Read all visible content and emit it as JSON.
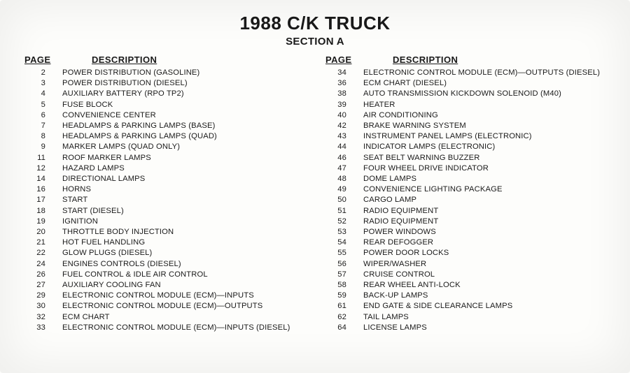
{
  "header": {
    "title": "1988 C/K TRUCK",
    "subtitle": "SECTION A"
  },
  "columnHeaders": {
    "page": "PAGE",
    "description": "DESCRIPTION"
  },
  "leftColumn": [
    {
      "page": "2",
      "desc": "POWER DISTRIBUTION (GASOLINE)"
    },
    {
      "page": "3",
      "desc": "POWER DISTRIBUTION (DIESEL)"
    },
    {
      "page": "4",
      "desc": "AUXILIARY BATTERY (RPO TP2)"
    },
    {
      "page": "5",
      "desc": "FUSE BLOCK"
    },
    {
      "page": "6",
      "desc": "CONVENIENCE CENTER"
    },
    {
      "page": "7",
      "desc": "HEADLAMPS & PARKING LAMPS (BASE)"
    },
    {
      "page": "8",
      "desc": "HEADLAMPS & PARKING LAMPS (QUAD)"
    },
    {
      "page": "9",
      "desc": "MARKER LAMPS (QUAD ONLY)"
    },
    {
      "page": "11",
      "desc": "ROOF MARKER LAMPS"
    },
    {
      "page": "12",
      "desc": "HAZARD LAMPS"
    },
    {
      "page": "14",
      "desc": "DIRECTIONAL LAMPS"
    },
    {
      "page": "16",
      "desc": "HORNS"
    },
    {
      "page": "17",
      "desc": "START"
    },
    {
      "page": "18",
      "desc": "START (DIESEL)"
    },
    {
      "page": "19",
      "desc": "IGNITION"
    },
    {
      "page": "20",
      "desc": "THROTTLE BODY INJECTION"
    },
    {
      "page": "21",
      "desc": "HOT FUEL HANDLING"
    },
    {
      "page": "22",
      "desc": "GLOW PLUGS (DIESEL)"
    },
    {
      "page": "24",
      "desc": "ENGINES CONTROLS (DIESEL)"
    },
    {
      "page": "26",
      "desc": "FUEL CONTROL & IDLE AIR CONTROL"
    },
    {
      "page": "27",
      "desc": "AUXILIARY COOLING FAN"
    },
    {
      "page": "29",
      "desc": "ELECTRONIC CONTROL MODULE (ECM)—INPUTS"
    },
    {
      "page": "30",
      "desc": "ELECTRONIC CONTROL MODULE (ECM)—OUTPUTS"
    },
    {
      "page": "32",
      "desc": "ECM CHART"
    },
    {
      "page": "33",
      "desc": "ELECTRONIC CONTROL MODULE (ECM)—INPUTS (DIESEL)"
    }
  ],
  "rightColumn": [
    {
      "page": "34",
      "desc": "ELECTRONIC CONTROL MODULE (ECM)—OUTPUTS (DIESEL)"
    },
    {
      "page": "36",
      "desc": "ECM CHART (DIESEL)"
    },
    {
      "page": "38",
      "desc": "AUTO TRANSMISSION KICKDOWN SOLENOID (M40)"
    },
    {
      "page": "39",
      "desc": "HEATER"
    },
    {
      "page": "40",
      "desc": "AIR CONDITIONING"
    },
    {
      "page": "42",
      "desc": "BRAKE WARNING SYSTEM"
    },
    {
      "page": "43",
      "desc": "INSTRUMENT PANEL LAMPS (ELECTRONIC)"
    },
    {
      "page": "44",
      "desc": "INDICATOR LAMPS (ELECTRONIC)"
    },
    {
      "page": "46",
      "desc": "SEAT BELT WARNING BUZZER"
    },
    {
      "page": "47",
      "desc": "FOUR WHEEL DRIVE INDICATOR"
    },
    {
      "page": "48",
      "desc": "DOME LAMPS"
    },
    {
      "page": "49",
      "desc": "CONVENIENCE LIGHTING PACKAGE"
    },
    {
      "page": "50",
      "desc": "CARGO LAMP"
    },
    {
      "page": "51",
      "desc": "RADIO EQUIPMENT"
    },
    {
      "page": "52",
      "desc": "RADIO EQUIPMENT"
    },
    {
      "page": "53",
      "desc": "POWER WINDOWS"
    },
    {
      "page": "54",
      "desc": "REAR DEFOGGER"
    },
    {
      "page": "55",
      "desc": "POWER DOOR LOCKS"
    },
    {
      "page": "56",
      "desc": "WIPER/WASHER"
    },
    {
      "page": "57",
      "desc": "CRUISE CONTROL"
    },
    {
      "page": "58",
      "desc": "REAR WHEEL ANTI-LOCK"
    },
    {
      "page": "59",
      "desc": "BACK-UP LAMPS"
    },
    {
      "page": "61",
      "desc": "END GATE & SIDE CLEARANCE LAMPS"
    },
    {
      "page": "62",
      "desc": "TAIL LAMPS"
    },
    {
      "page": "64",
      "desc": "LICENSE LAMPS"
    }
  ]
}
